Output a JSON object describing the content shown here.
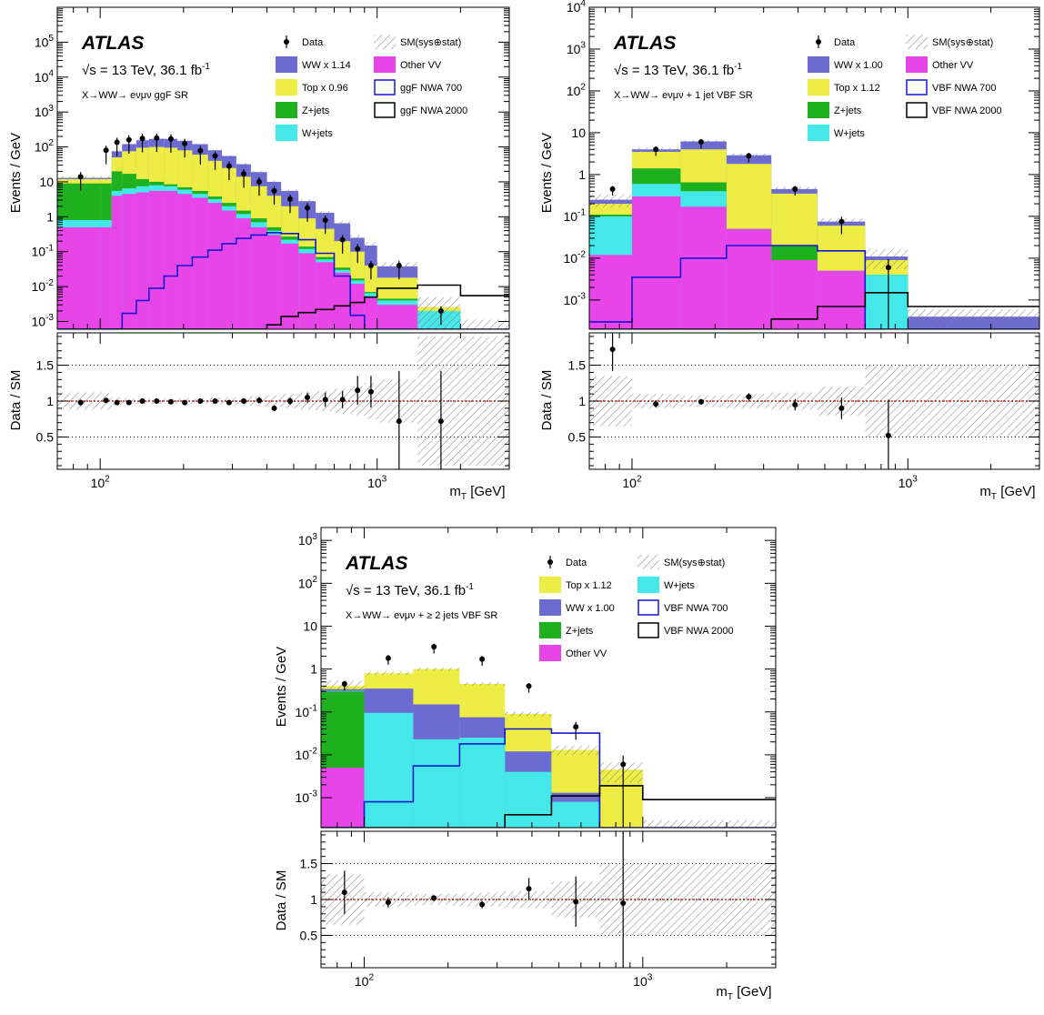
{
  "colors": {
    "ww": "#6b6bd1",
    "top": "#eded45",
    "zjets": "#1fb01f",
    "wjets": "#45e8e8",
    "othervv": "#e845e8",
    "nwa700": "#1515d6",
    "nwa2000": "#000000",
    "hatch": "#7f7f7f",
    "ref_line": "#cc0000"
  },
  "chart_data": [
    {
      "type": "bar",
      "panel": "ggF",
      "atlas_label": "ATLAS",
      "energy_label": "√s = 13 TeV, 36.1 fb",
      "energy_sup": "-1",
      "region_label": "X→WW→ eνμν ggF SR",
      "ylabel_top": "Events / GeV",
      "ylabel_ratio": "Data / SM",
      "xlabel": "m",
      "xlabel_sub": "T",
      "xlabel_unit": " [GeV]",
      "x_scale": "log",
      "y_scale": "log",
      "xlim": [
        70,
        3000
      ],
      "ylim": [
        0.0006,
        1000000
      ],
      "ratio_ylim": [
        0.05,
        1.95
      ],
      "yticks": [
        {
          "v": 0.001,
          "b": "10",
          "e": "-3"
        },
        {
          "v": 0.01,
          "b": "10",
          "e": "-2"
        },
        {
          "v": 0.1,
          "b": "10",
          "e": "-1"
        },
        {
          "v": 1,
          "b": "1",
          "e": ""
        },
        {
          "v": 10,
          "b": "10",
          "e": ""
        },
        {
          "v": 100,
          "b": "10",
          "e": "2"
        },
        {
          "v": 1000,
          "b": "10",
          "e": "3"
        },
        {
          "v": 10000,
          "b": "10",
          "e": "4"
        },
        {
          "v": 100000,
          "b": "10",
          "e": "5"
        }
      ],
      "ratio_ticks": [
        "0.5",
        "1",
        "1.5"
      ],
      "xticks": [
        {
          "v": 100,
          "b": "10",
          "e": "2"
        },
        {
          "v": 1000,
          "b": "10",
          "e": "3"
        }
      ],
      "legend": [
        {
          "key": "data",
          "label": "Data",
          "kind": "marker"
        },
        {
          "key": "sm",
          "label": "SM(sys⊕stat)",
          "kind": "hatch"
        },
        {
          "key": "ww",
          "label": "WW x 1.14",
          "kind": "fill"
        },
        {
          "key": "othervv",
          "label": "Other VV",
          "kind": "fill"
        },
        {
          "key": "top",
          "label": "Top x 0.96",
          "kind": "fill"
        },
        {
          "key": "nwa700",
          "label": "ggF NWA 700",
          "kind": "line"
        },
        {
          "key": "zjets",
          "label": "Z+jets",
          "kind": "fill"
        },
        {
          "key": "nwa2000",
          "label": "ggF NWA 2000",
          "kind": "line"
        },
        {
          "key": "wjets",
          "label": "W+jets",
          "kind": "fill"
        }
      ],
      "bin_edges": [
        70,
        100,
        110,
        120,
        135,
        150,
        170,
        190,
        215,
        245,
        275,
        310,
        350,
        400,
        450,
        520,
        600,
        700,
        800,
        900,
        1000,
        1400,
        2000,
        3000
      ],
      "stack_order": [
        "othervv",
        "wjets",
        "zjets",
        "top",
        "ww"
      ],
      "stack": {
        "othervv": [
          0.5,
          0.5,
          4,
          4.5,
          5,
          5.5,
          5.5,
          4.5,
          3.5,
          2.5,
          1.5,
          0.9,
          0.5,
          0.3,
          0.17,
          0.09,
          0.05,
          0.025,
          0.012,
          0.005,
          0.003,
          0.0006,
          0.0006
        ],
        "wjets": [
          0.8,
          0.8,
          5.5,
          6.5,
          7.5,
          8,
          7.5,
          6,
          4.5,
          3.2,
          2,
          1.2,
          0.7,
          0.4,
          0.22,
          0.12,
          0.06,
          0.03,
          0.015,
          0.0065,
          0.004,
          0.002,
          0.0006
        ],
        "zjets": [
          9,
          9,
          20,
          17,
          12,
          10,
          8.5,
          7,
          5.5,
          3.8,
          2.5,
          1.5,
          0.9,
          0.5,
          0.27,
          0.14,
          0.07,
          0.035,
          0.017,
          0.007,
          0.0045,
          0.002,
          0.0006
        ],
        "top": [
          12,
          12,
          50,
          75,
          95,
          100,
          95,
          80,
          60,
          40,
          25,
          14,
          7.5,
          4,
          2,
          0.9,
          0.45,
          0.2,
          0.1,
          0.04,
          0.018,
          0.0026,
          0.0006
        ],
        "ww": [
          13,
          13,
          75,
          120,
          155,
          170,
          170,
          150,
          120,
          80,
          55,
          32,
          19,
          10,
          5.5,
          2.8,
          1.3,
          0.65,
          0.25,
          0.15,
          0.038,
          0.0026,
          0.0006
        ]
      },
      "sm_uncertainty": [
        0.12,
        0.12,
        0.05,
        0.04,
        0.04,
        0.04,
        0.04,
        0.04,
        0.04,
        0.05,
        0.05,
        0.06,
        0.07,
        0.08,
        0.1,
        0.12,
        0.14,
        0.17,
        0.2,
        0.25,
        0.3,
        0.9,
        0.9
      ],
      "signals": {
        "nwa700": [
          0.0006,
          0.0006,
          0.0006,
          0.0017,
          0.004,
          0.009,
          0.02,
          0.04,
          0.07,
          0.11,
          0.17,
          0.24,
          0.3,
          0.35,
          0.33,
          0.22,
          0.09,
          0.02,
          0.0015,
          0.0006,
          0.0006,
          0.0006,
          0.0006
        ],
        "nwa2000": [
          0.0006,
          0.0006,
          0.0006,
          0.0006,
          0.0006,
          0.0006,
          0.0006,
          0.0006,
          0.0006,
          0.0006,
          0.0006,
          0.0006,
          0.0006,
          0.0008,
          0.0014,
          0.0018,
          0.0022,
          0.0028,
          0.0035,
          0.005,
          0.009,
          0.011,
          0.0055
        ]
      },
      "data_points": {
        "x": [
          85,
          105,
          115,
          127,
          142,
          160,
          180,
          202,
          230,
          260,
          292,
          330,
          375,
          425,
          485,
          560,
          650,
          750,
          850,
          950,
          1200,
          1700
        ],
        "y": [
          14,
          80,
          135,
          160,
          175,
          180,
          170,
          125,
          78,
          55,
          28,
          17,
          10,
          5.5,
          3.2,
          1.8,
          0.8,
          0.22,
          0.12,
          0.04,
          0.04,
          0.002
        ],
        "err_lo": [
          0.6,
          0.6,
          0.6,
          0.6,
          0.6,
          0.6,
          0.6,
          0.6,
          0.6,
          0.6,
          0.6,
          0.6,
          0.6,
          0.6,
          0.6,
          0.6,
          0.6,
          0.6,
          0.6,
          0.6,
          0.6,
          0.6
        ],
        "ratio": [
          0.98,
          1.01,
          0.98,
          0.98,
          1.0,
          1.0,
          0.99,
          0.98,
          1.0,
          1.0,
          0.98,
          1.0,
          1.01,
          0.9,
          1.0,
          1.05,
          1.02,
          1.02,
          1.15,
          1.13,
          0.72,
          0.72
        ],
        "ratio_err": [
          0.04,
          0.03,
          0.02,
          0.02,
          0.02,
          0.02,
          0.02,
          0.02,
          0.02,
          0.02,
          0.03,
          0.03,
          0.04,
          0.04,
          0.05,
          0.07,
          0.1,
          0.12,
          0.2,
          0.22,
          0.7,
          0.7
        ]
      }
    },
    {
      "type": "bar",
      "panel": "VBF1J",
      "atlas_label": "ATLAS",
      "energy_label": "√s = 13 TeV, 36.1 fb",
      "energy_sup": "-1",
      "region_label": "X→WW→ eνμν + 1 jet VBF SR",
      "ylabel_top": "Events / GeV",
      "ylabel_ratio": "Data / SM",
      "xlabel": "m",
      "xlabel_sub": "T",
      "xlabel_unit": " [GeV]",
      "x_scale": "log",
      "y_scale": "log",
      "xlim": [
        70,
        3000
      ],
      "ylim": [
        0.0002,
        10000
      ],
      "ratio_ylim": [
        0.05,
        1.95
      ],
      "yticks": [
        {
          "v": 0.001,
          "b": "10",
          "e": "-3"
        },
        {
          "v": 0.01,
          "b": "10",
          "e": "-2"
        },
        {
          "v": 0.1,
          "b": "10",
          "e": "-1"
        },
        {
          "v": 1,
          "b": "1",
          "e": ""
        },
        {
          "v": 10,
          "b": "10",
          "e": ""
        },
        {
          "v": 100,
          "b": "10",
          "e": "2"
        },
        {
          "v": 1000,
          "b": "10",
          "e": "3"
        },
        {
          "v": 10000,
          "b": "10",
          "e": "4"
        }
      ],
      "ratio_ticks": [
        "0.5",
        "1",
        "1.5"
      ],
      "xticks": [
        {
          "v": 100,
          "b": "10",
          "e": "2"
        },
        {
          "v": 1000,
          "b": "10",
          "e": "3"
        }
      ],
      "legend": [
        {
          "key": "data",
          "label": "Data",
          "kind": "marker"
        },
        {
          "key": "sm",
          "label": "SM(sys⊕stat)",
          "kind": "hatch"
        },
        {
          "key": "ww",
          "label": "WW x 1.00",
          "kind": "fill"
        },
        {
          "key": "othervv",
          "label": "Other VV",
          "kind": "fill"
        },
        {
          "key": "top",
          "label": "Top x 1.12",
          "kind": "fill"
        },
        {
          "key": "nwa700",
          "label": "VBF NWA 700",
          "kind": "line"
        },
        {
          "key": "zjets",
          "label": "Z+jets",
          "kind": "fill"
        },
        {
          "key": "nwa2000",
          "label": "VBF NWA 2000",
          "kind": "line"
        },
        {
          "key": "wjets",
          "label": "W+jets",
          "kind": "fill"
        }
      ],
      "bin_edges": [
        70,
        100,
        150,
        220,
        320,
        470,
        700,
        1000,
        3000
      ],
      "stack_order": [
        "othervv",
        "wjets",
        "zjets",
        "top",
        "ww"
      ],
      "stack": {
        "othervv": [
          0.012,
          0.3,
          0.17,
          0.05,
          0.009,
          0.005,
          0.0002,
          0.0002
        ],
        "wjets": [
          0.1,
          0.6,
          0.4,
          0.05,
          0.009,
          0.005,
          0.004,
          0.0002
        ],
        "zjets": [
          0.11,
          1.4,
          0.65,
          0.05,
          0.02,
          0.005,
          0.004,
          0.0002
        ],
        "top": [
          0.2,
          3.5,
          4,
          1.8,
          0.35,
          0.06,
          0.009,
          0.0002
        ],
        "ww": [
          0.25,
          4.0,
          6.2,
          2.9,
          0.45,
          0.075,
          0.011,
          0.0004
        ]
      },
      "sm_uncertainty": [
        0.35,
        0.1,
        0.08,
        0.1,
        0.12,
        0.2,
        0.5,
        0.5
      ],
      "signals": {
        "nwa700": [
          0.0003,
          0.0035,
          0.01,
          0.02,
          0.02,
          0.015,
          0.0002,
          0.0002
        ],
        "nwa2000": [
          0.0002,
          0.0002,
          0.0002,
          0.0002,
          0.00035,
          0.0007,
          0.0015,
          0.0007
        ]
      },
      "data_points": {
        "x": [
          85,
          122,
          178,
          265,
          390,
          575,
          850
        ],
        "y": [
          0.45,
          4.0,
          6.0,
          2.8,
          0.45,
          0.075,
          0.006
        ],
        "err_lo": [
          0.3,
          0.3,
          0.3,
          0.3,
          0.3,
          0.5,
          0.99
        ],
        "ratio": [
          1.72,
          0.96,
          0.99,
          1.06,
          0.95,
          0.9,
          0.52
        ],
        "ratio_err": [
          0.3,
          0.05,
          0.04,
          0.05,
          0.08,
          0.15,
          0.5
        ]
      }
    },
    {
      "type": "bar",
      "panel": "VBF2J",
      "atlas_label": "ATLAS",
      "energy_label": "√s = 13 TeV, 36.1 fb",
      "energy_sup": "-1",
      "region_label": "X→WW→ eνμν + ≥ 2 jets VBF SR",
      "ylabel_top": "Events / GeV",
      "ylabel_ratio": "Data / SM",
      "xlabel": "m",
      "xlabel_sub": "T",
      "xlabel_unit": " [GeV]",
      "x_scale": "log",
      "y_scale": "log",
      "xlim": [
        70,
        3000
      ],
      "ylim": [
        0.0002,
        2000
      ],
      "ratio_ylim": [
        0.05,
        1.95
      ],
      "yticks": [
        {
          "v": 0.001,
          "b": "10",
          "e": "-3"
        },
        {
          "v": 0.01,
          "b": "10",
          "e": "-2"
        },
        {
          "v": 0.1,
          "b": "10",
          "e": "-1"
        },
        {
          "v": 1,
          "b": "1",
          "e": ""
        },
        {
          "v": 10,
          "b": "10",
          "e": ""
        },
        {
          "v": 100,
          "b": "10",
          "e": "2"
        },
        {
          "v": 1000,
          "b": "10",
          "e": "3"
        }
      ],
      "ratio_ticks": [
        "0.5",
        "1",
        "1.5"
      ],
      "xticks": [
        {
          "v": 100,
          "b": "10",
          "e": "2"
        },
        {
          "v": 1000,
          "b": "10",
          "e": "3"
        }
      ],
      "legend": [
        {
          "key": "data",
          "label": "Data",
          "kind": "marker"
        },
        {
          "key": "sm",
          "label": "SM(sys⊕stat)",
          "kind": "hatch"
        },
        {
          "key": "top",
          "label": "Top x 1.12",
          "kind": "fill"
        },
        {
          "key": "wjets",
          "label": "W+jets",
          "kind": "fill"
        },
        {
          "key": "ww",
          "label": "WW x 1.00",
          "kind": "fill"
        },
        {
          "key": "nwa700",
          "label": "VBF NWA 700",
          "kind": "line"
        },
        {
          "key": "zjets",
          "label": "Z+jets",
          "kind": "fill"
        },
        {
          "key": "nwa2000",
          "label": "VBF NWA 2000",
          "kind": "line"
        },
        {
          "key": "othervv",
          "label": "Other VV",
          "kind": "fill"
        }
      ],
      "bin_edges": [
        70,
        100,
        150,
        220,
        320,
        470,
        700,
        1000,
        3000
      ],
      "stack_order": [
        "othervv",
        "zjets",
        "wjets",
        "ww",
        "top"
      ],
      "stack": {
        "othervv": [
          0.005,
          0.0002,
          0.0002,
          0.0002,
          0.0002,
          0.0002,
          0.0002,
          0.0002
        ],
        "zjets": [
          0.3,
          0.0002,
          0.0002,
          0.0002,
          0.0002,
          0.0002,
          0.0002,
          0.0002
        ],
        "wjets": [
          0.31,
          0.095,
          0.023,
          0.025,
          0.004,
          0.0008,
          0.0002,
          0.0002
        ],
        "ww": [
          0.34,
          0.35,
          0.15,
          0.075,
          0.012,
          0.0013,
          0.0002,
          0.0002
        ],
        "top": [
          0.4,
          0.8,
          1.0,
          0.45,
          0.09,
          0.013,
          0.0045,
          0.0002
        ]
      },
      "stack_extra": {
        "layer2": [
          0.31,
          0.25,
          0.15,
          0.048,
          0.012,
          0.0013,
          0.0002,
          0.0002
        ],
        "layer3": [
          0.34,
          0.35,
          0.95,
          0.45,
          0.09,
          0.013,
          0.0045,
          0.0002
        ]
      },
      "sm_uncertainty": [
        0.35,
        0.1,
        0.08,
        0.1,
        0.12,
        0.25,
        0.5,
        0.5
      ],
      "signals": {
        "nwa700": [
          0.0002,
          0.0008,
          0.0055,
          0.018,
          0.04,
          0.032,
          0.0002,
          0.0002
        ],
        "nwa2000": [
          0.0002,
          0.0002,
          0.0002,
          0.0002,
          0.0004,
          0.0011,
          0.0019,
          0.0009
        ]
      },
      "data_points": {
        "x": [
          85,
          122,
          178,
          265,
          390,
          575,
          850
        ],
        "y": [
          0.45,
          1.8,
          3.3,
          1.7,
          0.4,
          0.045,
          0.006
        ],
        "err_lo": [
          0.3,
          0.3,
          0.3,
          0.3,
          0.3,
          0.5,
          0.99
        ],
        "ratio": [
          1.1,
          0.96,
          1.02,
          0.93,
          1.15,
          0.97,
          0.95
        ],
        "ratio_err": [
          0.3,
          0.07,
          0.04,
          0.05,
          0.15,
          0.35,
          1.0
        ]
      }
    }
  ]
}
